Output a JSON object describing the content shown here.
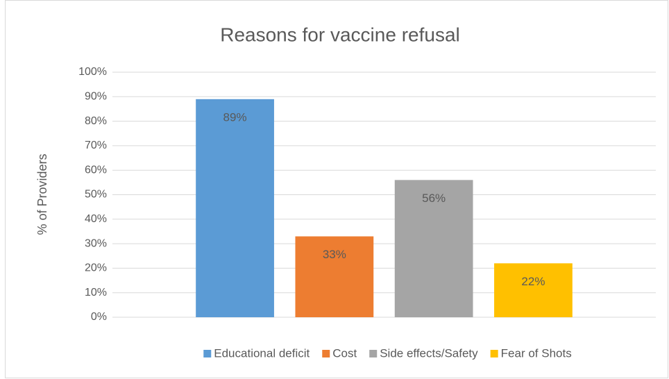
{
  "chart_data": {
    "type": "bar",
    "title": "Reasons for vaccine refusal",
    "y_label": "% of Providers",
    "categories": [
      null
    ],
    "series": [
      {
        "name": "Educational deficit",
        "color": "#5b9bd5",
        "values": [
          89
        ],
        "value_labels": [
          "89%"
        ]
      },
      {
        "name": "Cost",
        "color": "#ed7d31",
        "values": [
          33
        ],
        "value_labels": [
          "33%"
        ]
      },
      {
        "name": "Side effects/Safety",
        "color": "#a5a5a5",
        "values": [
          56
        ],
        "value_labels": [
          "56%"
        ]
      },
      {
        "name": "Fear of Shots",
        "color": "#ffc000",
        "values": [
          22
        ],
        "value_labels": [
          "22%"
        ]
      }
    ],
    "ylim": [
      0,
      100
    ],
    "yticks": [
      {
        "value": 0,
        "label": "0%"
      },
      {
        "value": 10,
        "label": "10%"
      },
      {
        "value": 20,
        "label": "20%"
      },
      {
        "value": 30,
        "label": "30%"
      },
      {
        "value": 40,
        "label": "40%"
      },
      {
        "value": 50,
        "label": "50%"
      },
      {
        "value": 60,
        "label": "60%"
      },
      {
        "value": 70,
        "label": "70%"
      },
      {
        "value": 80,
        "label": "80%"
      },
      {
        "value": 90,
        "label": "90%"
      },
      {
        "value": 100,
        "label": "100%"
      }
    ],
    "grid": true,
    "legend": "bottom"
  }
}
